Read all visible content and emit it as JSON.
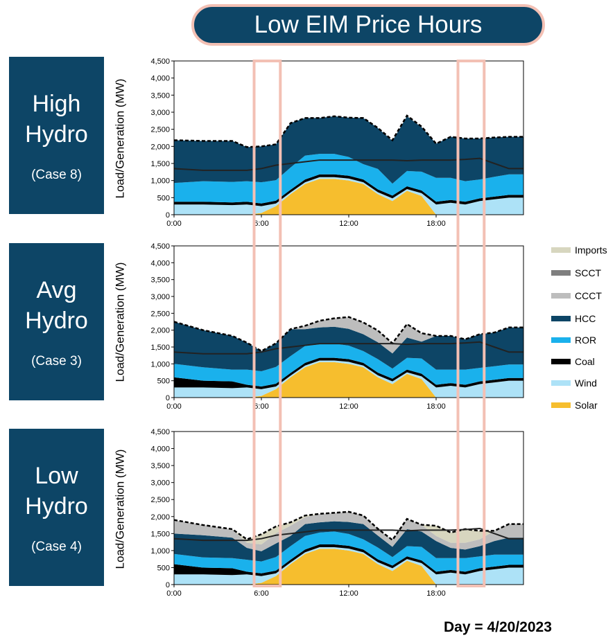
{
  "title": "Low EIM Price Hours",
  "footer": "Day = 4/20/2023",
  "colors": {
    "title_bg": "#0d4566",
    "highlight": "#f3c0b4",
    "Imports": "#d7d6bf",
    "SCCT": "#7f7f7f",
    "CCCT": "#bdbdbd",
    "HCC": "#0d4566",
    "ROR": "#1ab1ec",
    "Coal": "#000000",
    "Wind": "#ade2f7",
    "Solar": "#f6be2e"
  },
  "legend": [
    {
      "label": "Imports",
      "color": "#d7d6bf"
    },
    {
      "label": "SCCT",
      "color": "#7f7f7f"
    },
    {
      "label": "CCCT",
      "color": "#bdbdbd"
    },
    {
      "label": "HCC",
      "color": "#0d4566"
    },
    {
      "label": "ROR",
      "color": "#1ab1ec"
    },
    {
      "label": "Coal",
      "color": "#000000"
    },
    {
      "label": "Wind",
      "color": "#ade2f7"
    },
    {
      "label": "Solar",
      "color": "#f6be2e"
    }
  ],
  "cases": [
    {
      "name_line1": "High",
      "name_line2": "Hydro",
      "case_label": "(Case 8)"
    },
    {
      "name_line1": "Avg",
      "name_line2": "Hydro",
      "case_label": "(Case 3)"
    },
    {
      "name_line1": "Low",
      "name_line2": "Hydro",
      "case_label": "(Case 4)"
    }
  ],
  "chart_data": [
    {
      "type": "area",
      "case": "High Hydro (Case 8)",
      "ylabel": "Load/Generation (MW)",
      "x": [
        0,
        2,
        4,
        5,
        6,
        7,
        8,
        9,
        10,
        11,
        12,
        13,
        14,
        15,
        16,
        17,
        18,
        19,
        20,
        21,
        22,
        23
      ],
      "xticks": [
        "0:00",
        "6:00",
        "12:00",
        "18:00"
      ],
      "xtick_values": [
        0,
        6,
        12,
        18
      ],
      "ylim": [
        0,
        4500
      ],
      "yticks": [
        "0",
        "500",
        "1,000",
        "1,500",
        "2,000",
        "2,500",
        "3,000",
        "3,500",
        "4,000",
        "4,500"
      ],
      "highlight_hours": [
        [
          5.5,
          7.3
        ],
        [
          19.5,
          21.3
        ]
      ],
      "series": [
        {
          "name": "Solar",
          "values": [
            0,
            0,
            0,
            0,
            50,
            250,
            600,
            900,
            1050,
            1050,
            1000,
            900,
            600,
            400,
            700,
            550,
            0,
            0,
            0,
            0,
            0,
            0
          ]
        },
        {
          "name": "Wind",
          "values": [
            300,
            300,
            280,
            300,
            200,
            80,
            50,
            50,
            50,
            50,
            60,
            50,
            60,
            80,
            50,
            80,
            300,
            350,
            300,
            400,
            450,
            500
          ]
        },
        {
          "name": "Coal",
          "values": [
            80,
            80,
            80,
            80,
            80,
            80,
            80,
            80,
            80,
            80,
            80,
            80,
            80,
            80,
            80,
            80,
            80,
            80,
            80,
            80,
            80,
            80
          ]
        },
        {
          "name": "ROR",
          "values": [
            550,
            600,
            600,
            600,
            620,
            600,
            650,
            700,
            600,
            600,
            550,
            450,
            600,
            350,
            450,
            550,
            700,
            650,
            600,
            550,
            580,
            600
          ]
        },
        {
          "name": "HCC",
          "values": [
            1250,
            1180,
            1200,
            1000,
            1050,
            1050,
            1300,
            1100,
            1050,
            1100,
            1150,
            1350,
            1200,
            1250,
            1600,
            1300,
            1000,
            1200,
            1250,
            1200,
            1150,
            1100
          ]
        },
        {
          "name": "CCCT",
          "values": [
            0,
            0,
            0,
            0,
            0,
            0,
            0,
            0,
            0,
            0,
            0,
            0,
            0,
            20,
            20,
            20,
            0,
            0,
            0,
            0,
            0,
            0
          ]
        },
        {
          "name": "SCCT",
          "values": [
            0,
            0,
            0,
            0,
            0,
            0,
            0,
            0,
            0,
            0,
            0,
            0,
            0,
            0,
            0,
            0,
            0,
            0,
            0,
            0,
            0,
            0
          ]
        },
        {
          "name": "Imports",
          "values": [
            0,
            0,
            0,
            0,
            0,
            0,
            0,
            0,
            0,
            0,
            0,
            0,
            0,
            0,
            0,
            0,
            0,
            0,
            0,
            0,
            0,
            0
          ]
        }
      ],
      "load": [
        1350,
        1300,
        1300,
        1300,
        1350,
        1450,
        1500,
        1550,
        1600,
        1600,
        1600,
        1600,
        1600,
        1600,
        1580,
        1600,
        1600,
        1600,
        1620,
        1650,
        1500,
        1350
      ]
    },
    {
      "type": "area",
      "case": "Avg Hydro (Case 3)",
      "ylabel": "Load/Generation (MW)",
      "x": [
        0,
        2,
        4,
        5,
        6,
        7,
        8,
        9,
        10,
        11,
        12,
        13,
        14,
        15,
        16,
        17,
        18,
        19,
        20,
        21,
        22,
        23
      ],
      "xticks": [
        "0:00",
        "6:00",
        "12:00",
        "18:00"
      ],
      "xtick_values": [
        0,
        6,
        12,
        18
      ],
      "ylim": [
        0,
        4500
      ],
      "yticks": [
        "0",
        "500",
        "1,000",
        "1,500",
        "2,000",
        "2,500",
        "3,000",
        "3,500",
        "4,000",
        "4,500"
      ],
      "highlight_hours": [
        [
          5.5,
          7.3
        ],
        [
          19.5,
          21.3
        ]
      ],
      "series": [
        {
          "name": "Solar",
          "values": [
            0,
            0,
            0,
            0,
            50,
            250,
            600,
            900,
            1050,
            1050,
            1000,
            900,
            600,
            400,
            700,
            550,
            0,
            0,
            0,
            0,
            0,
            0
          ]
        },
        {
          "name": "Wind",
          "values": [
            300,
            300,
            280,
            300,
            200,
            80,
            50,
            50,
            50,
            50,
            60,
            50,
            60,
            80,
            50,
            80,
            300,
            350,
            300,
            400,
            450,
            500
          ]
        },
        {
          "name": "Coal",
          "values": [
            300,
            200,
            200,
            80,
            80,
            80,
            80,
            80,
            80,
            80,
            80,
            80,
            80,
            80,
            80,
            80,
            80,
            80,
            80,
            80,
            80,
            80
          ]
        },
        {
          "name": "ROR",
          "values": [
            400,
            400,
            350,
            450,
            450,
            500,
            500,
            500,
            400,
            420,
            400,
            350,
            400,
            300,
            350,
            450,
            450,
            400,
            450,
            400,
            400,
            400
          ]
        },
        {
          "name": "HCC",
          "values": [
            1250,
            1100,
            1000,
            800,
            600,
            700,
            800,
            500,
            500,
            500,
            500,
            500,
            500,
            450,
            600,
            500,
            1000,
            1000,
            900,
            1000,
            1000,
            1100
          ]
        },
        {
          "name": "CCCT",
          "values": [
            0,
            0,
            0,
            0,
            0,
            0,
            0,
            100,
            200,
            250,
            350,
            350,
            350,
            300,
            400,
            250,
            0,
            0,
            0,
            0,
            0,
            0
          ]
        },
        {
          "name": "SCCT",
          "values": [
            0,
            0,
            0,
            0,
            0,
            0,
            0,
            0,
            0,
            0,
            0,
            0,
            0,
            0,
            0,
            0,
            0,
            0,
            0,
            0,
            0,
            0
          ]
        },
        {
          "name": "Imports",
          "values": [
            0,
            0,
            0,
            0,
            0,
            0,
            0,
            0,
            0,
            0,
            0,
            0,
            0,
            0,
            0,
            0,
            0,
            0,
            0,
            0,
            0,
            0
          ]
        }
      ],
      "load": [
        1350,
        1300,
        1300,
        1300,
        1350,
        1450,
        1500,
        1550,
        1600,
        1600,
        1600,
        1600,
        1600,
        1600,
        1580,
        1600,
        1600,
        1600,
        1620,
        1650,
        1500,
        1350
      ]
    },
    {
      "type": "area",
      "case": "Low Hydro (Case 4)",
      "ylabel": "Load/Generation (MW)",
      "x": [
        0,
        2,
        4,
        5,
        6,
        7,
        8,
        9,
        10,
        11,
        12,
        13,
        14,
        15,
        16,
        17,
        18,
        19,
        20,
        21,
        22,
        23
      ],
      "xticks": [
        "0:00",
        "6:00",
        "12:00",
        "18:00"
      ],
      "xtick_values": [
        0,
        6,
        12,
        18
      ],
      "ylim": [
        0,
        4500
      ],
      "yticks": [
        "0",
        "500",
        "1,000",
        "1,500",
        "2,000",
        "2,500",
        "3,000",
        "3,500",
        "4,000",
        "4,500"
      ],
      "highlight_hours": [
        [
          5.5,
          7.3
        ],
        [
          19.5,
          21.3
        ]
      ],
      "series": [
        {
          "name": "Solar",
          "values": [
            0,
            0,
            0,
            0,
            50,
            250,
            600,
            900,
            1050,
            1050,
            1000,
            900,
            600,
            400,
            700,
            550,
            0,
            0,
            0,
            0,
            0,
            0
          ]
        },
        {
          "name": "Wind",
          "values": [
            300,
            300,
            280,
            300,
            200,
            80,
            50,
            50,
            50,
            50,
            60,
            50,
            60,
            80,
            50,
            80,
            300,
            350,
            300,
            400,
            450,
            500
          ]
        },
        {
          "name": "Coal",
          "values": [
            300,
            200,
            200,
            80,
            80,
            80,
            80,
            80,
            80,
            80,
            80,
            80,
            80,
            80,
            80,
            80,
            80,
            80,
            80,
            80,
            80,
            80
          ]
        },
        {
          "name": "ROR",
          "values": [
            300,
            300,
            300,
            350,
            350,
            400,
            400,
            400,
            350,
            380,
            350,
            300,
            350,
            250,
            300,
            400,
            400,
            350,
            400,
            350,
            350,
            300
          ]
        },
        {
          "name": "HCC",
          "values": [
            600,
            650,
            600,
            350,
            300,
            400,
            300,
            350,
            300,
            300,
            350,
            450,
            350,
            300,
            500,
            450,
            500,
            300,
            250,
            300,
            400,
            500
          ]
        },
        {
          "name": "CCCT",
          "values": [
            400,
            300,
            250,
            150,
            200,
            300,
            300,
            200,
            250,
            250,
            300,
            250,
            200,
            200,
            300,
            200,
            150,
            150,
            200,
            200,
            300,
            400
          ]
        },
        {
          "name": "SCCT",
          "values": [
            0,
            0,
            0,
            0,
            0,
            0,
            0,
            0,
            0,
            0,
            0,
            0,
            0,
            0,
            0,
            0,
            0,
            0,
            0,
            0,
            0,
            0
          ]
        },
        {
          "name": "Imports",
          "values": [
            0,
            0,
            0,
            100,
            300,
            200,
            100,
            50,
            0,
            0,
            0,
            0,
            0,
            0,
            0,
            0,
            300,
            300,
            400,
            250,
            0,
            0
          ]
        }
      ],
      "load": [
        1350,
        1300,
        1300,
        1300,
        1350,
        1450,
        1500,
        1550,
        1600,
        1600,
        1600,
        1600,
        1600,
        1600,
        1580,
        1600,
        1600,
        1600,
        1620,
        1650,
        1500,
        1350
      ]
    }
  ]
}
